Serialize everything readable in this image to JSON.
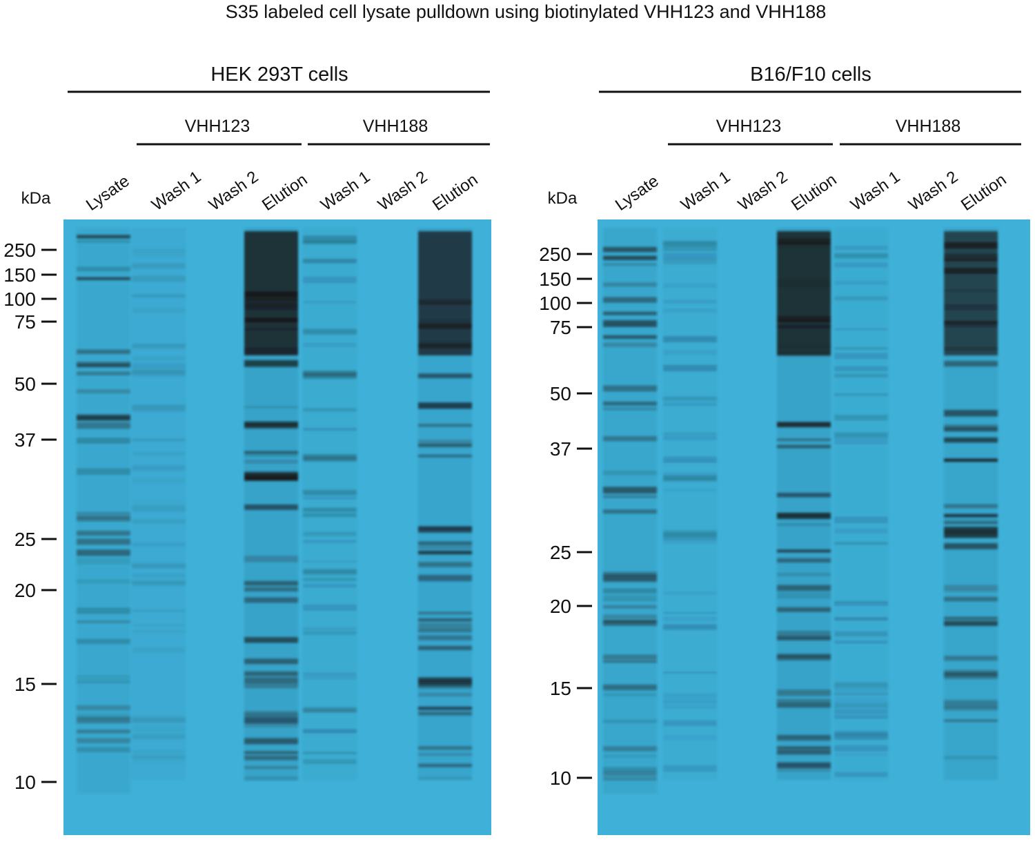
{
  "title": "S35 labeled cell lysate pulldown using biotinylated VHH123 and VHH188",
  "panels": [
    {
      "cells": "HEK 293T cells",
      "groups": [
        "VHH123",
        "VHH188"
      ],
      "lanes": [
        "Lysate",
        "Wash 1",
        "Wash 2",
        "Elution",
        "Wash 1",
        "Wash 2",
        "Elution"
      ],
      "unit": "kDa",
      "markers": [
        250,
        150,
        100,
        75,
        50,
        37,
        25,
        20,
        15,
        10
      ]
    },
    {
      "cells": "B16/F10 cells",
      "groups": [
        "VHH123",
        "VHH188"
      ],
      "lanes": [
        "Lysate",
        "Wash 1",
        "Wash 2",
        "Elution",
        "Wash 1",
        "Wash 2",
        "Elution"
      ],
      "unit": "kDa",
      "markers": [
        250,
        150,
        100,
        75,
        50,
        37,
        25,
        20,
        15,
        10
      ]
    }
  ]
}
